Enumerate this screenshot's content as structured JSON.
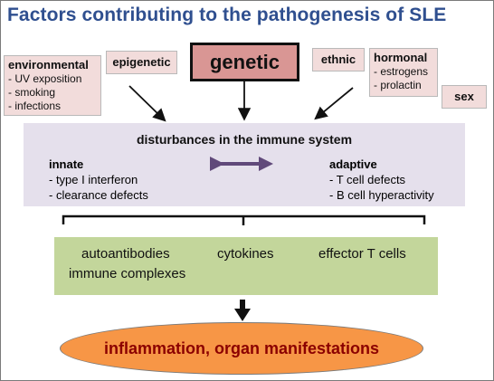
{
  "title": "Factors contributing to the pathogenesis of SLE",
  "factors": {
    "environmental": {
      "label": "environmental",
      "items": [
        "- UV exposition",
        "- smoking",
        "- infections"
      ]
    },
    "epigenetic": {
      "label": "epigenetic"
    },
    "genetic": {
      "label": "genetic"
    },
    "ethnic": {
      "label": "ethnic"
    },
    "hormonal": {
      "label": "hormonal",
      "items": [
        "- estrogens",
        "- prolactin"
      ]
    },
    "sex": {
      "label": "sex"
    }
  },
  "immune": {
    "title": "disturbances in the immune system",
    "innate": {
      "label": "innate",
      "items": [
        "-  type I interferon",
        "-  clearance defects"
      ]
    },
    "adaptive": {
      "label": "adaptive",
      "items": [
        "-  T cell defects",
        "-  B cell hyperactivity"
      ]
    }
  },
  "effects": {
    "autoantibodies": "autoantibodies",
    "cytokines": "cytokines",
    "effector_t_cells": "effector T cells",
    "immune_complexes": "immune complexes"
  },
  "outcome": "inflammation, organ manifestations",
  "colors": {
    "title": "#2f4f8f",
    "factor_box": "#f2dcdb",
    "genetic_box": "#d99694",
    "immune_box": "#e5e0ec",
    "effects_box": "#c3d69b",
    "outcome_fill": "#f79646",
    "outcome_text": "#8b0000",
    "double_arrow": "#60497a"
  }
}
